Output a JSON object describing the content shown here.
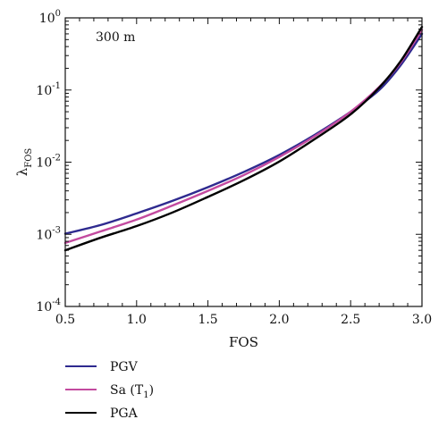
{
  "chart_data": {
    "type": "line",
    "title": "",
    "xlabel": "FOS",
    "ylabel_main": "λ",
    "ylabel_sub": "FOS",
    "annotation": "300 m",
    "xlim": [
      0.5,
      3.0
    ],
    "ylim": [
      0.0001,
      1
    ],
    "yscale": "log",
    "grid": false,
    "legend_position": "bottom-left, below plot",
    "x_ticks": [
      {
        "value": 0.5,
        "label": "0.5"
      },
      {
        "value": 1.0,
        "label": "1.0"
      },
      {
        "value": 1.5,
        "label": "1.5"
      },
      {
        "value": 2.0,
        "label": "2.0"
      },
      {
        "value": 2.5,
        "label": "2.5"
      },
      {
        "value": 3.0,
        "label": "3.0"
      }
    ],
    "y_ticks": [
      {
        "value": 1,
        "base": "10",
        "exp": "0"
      },
      {
        "value": 0.1,
        "base": "10",
        "exp": "-1"
      },
      {
        "value": 0.01,
        "base": "10",
        "exp": "-2"
      },
      {
        "value": 0.001,
        "base": "10",
        "exp": "-3"
      },
      {
        "value": 0.0001,
        "base": "10",
        "exp": "-4"
      }
    ],
    "x": [
      0.5,
      0.75,
      1.0,
      1.25,
      1.5,
      1.75,
      2.0,
      2.25,
      2.5,
      2.7,
      2.85,
      3.0
    ],
    "series": [
      {
        "name": "PGV",
        "legend_main": "PGV",
        "legend_sub": "",
        "legend_suffix": "",
        "color": "#2e2a8f",
        "values": [
          0.00102,
          0.00135,
          0.00195,
          0.0029,
          0.0045,
          0.0073,
          0.0126,
          0.024,
          0.05,
          0.1,
          0.22,
          0.6
        ]
      },
      {
        "name": "Sa (T1)",
        "legend_main": "Sa (T",
        "legend_sub": "1",
        "legend_suffix": ")",
        "color": "#c34a9f",
        "values": [
          0.00076,
          0.0011,
          0.0016,
          0.0025,
          0.004,
          0.0066,
          0.0118,
          0.023,
          0.05,
          0.11,
          0.24,
          0.68
        ]
      },
      {
        "name": "PGA",
        "legend_main": "PGA",
        "legend_sub": "",
        "legend_suffix": "",
        "color": "#000000",
        "values": [
          0.0006,
          0.0009,
          0.0013,
          0.002,
          0.0033,
          0.0056,
          0.0102,
          0.021,
          0.046,
          0.108,
          0.25,
          0.75
        ]
      }
    ]
  }
}
